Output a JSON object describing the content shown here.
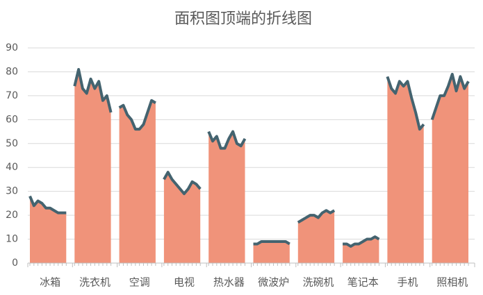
{
  "chart_data": {
    "type": "area",
    "title": "面积图顶端的折线图",
    "categories": [
      "冰箱",
      "洗衣机",
      "空调",
      "电视",
      "热水器",
      "微波炉",
      "洗碗机",
      "笔记本",
      "手机",
      "照相机"
    ],
    "values": [
      [
        28,
        24,
        26,
        25,
        23,
        23,
        22,
        21,
        21,
        21
      ],
      [
        74,
        81,
        73,
        71,
        77,
        73,
        76,
        68,
        70,
        63
      ],
      [
        65,
        66,
        62,
        60,
        56,
        56,
        58,
        63,
        68,
        67
      ],
      [
        35,
        38,
        35,
        33,
        31,
        29,
        31,
        34,
        33,
        31
      ],
      [
        55,
        51,
        53,
        48,
        48,
        52,
        55,
        50,
        49,
        52
      ],
      [
        8,
        8,
        9,
        9,
        9,
        9,
        9,
        9,
        9,
        8
      ],
      [
        17,
        18,
        19,
        20,
        20,
        19,
        21,
        22,
        21,
        22
      ],
      [
        8,
        8,
        7,
        8,
        8,
        9,
        10,
        10,
        11,
        10
      ],
      [
        78,
        73,
        71,
        76,
        74,
        76,
        69,
        63,
        56,
        58
      ],
      [
        60,
        65,
        70,
        70,
        74,
        79,
        72,
        78,
        73,
        76
      ]
    ],
    "color": "#f0937a",
    "line_color": "#44636f",
    "ylim": [
      0,
      90
    ],
    "yticks": [
      0,
      10,
      20,
      30,
      40,
      50,
      60,
      70,
      80,
      90
    ],
    "grid": true
  }
}
